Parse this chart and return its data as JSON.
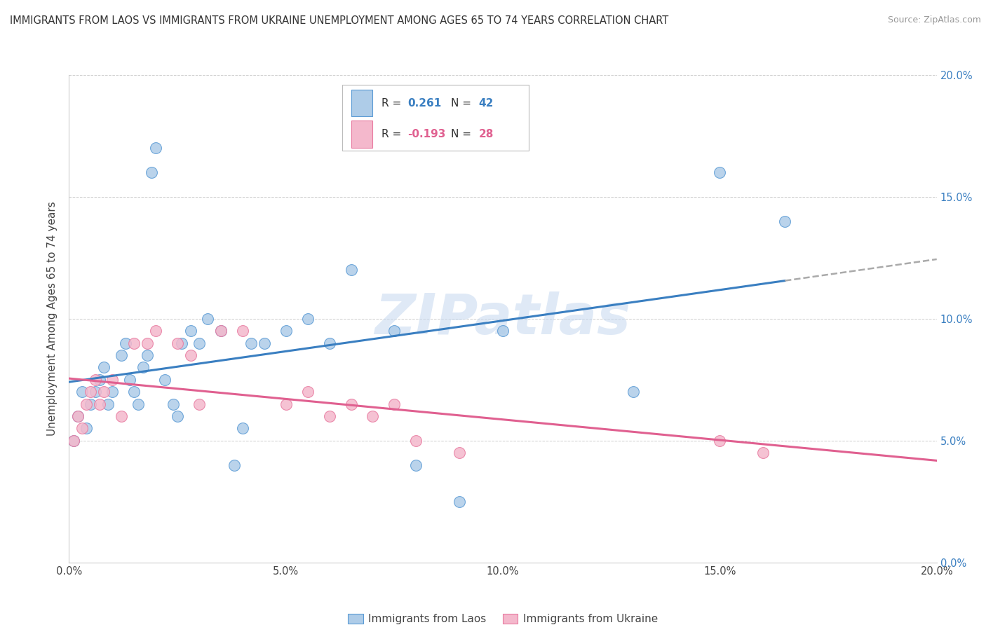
{
  "title": "IMMIGRANTS FROM LAOS VS IMMIGRANTS FROM UKRAINE UNEMPLOYMENT AMONG AGES 65 TO 74 YEARS CORRELATION CHART",
  "source": "Source: ZipAtlas.com",
  "ylabel": "Unemployment Among Ages 65 to 74 years",
  "legend_label1": "Immigrants from Laos",
  "legend_label2": "Immigrants from Ukraine",
  "R1": 0.261,
  "N1": 42,
  "R2": -0.193,
  "N2": 28,
  "color_laos_fill": "#aecce8",
  "color_ukraine_fill": "#f4b8cc",
  "color_laos_edge": "#5b9bd5",
  "color_ukraine_edge": "#e87aa0",
  "color_laos_line": "#3a7fc1",
  "color_ukraine_line": "#e06090",
  "color_dashed": "#aaaaaa",
  "xlim": [
    0.0,
    0.2
  ],
  "ylim": [
    0.0,
    0.2
  ],
  "background_color": "#ffffff",
  "watermark_text": "ZIPatlas",
  "xticks": [
    0.0,
    0.05,
    0.1,
    0.15,
    0.2
  ],
  "yticks": [
    0.0,
    0.05,
    0.1,
    0.15,
    0.2
  ],
  "xtick_labels": [
    "0.0%",
    "5.0%",
    "10.0%",
    "15.0%",
    "20.0%"
  ],
  "ytick_labels": [
    "0.0%",
    "5.0%",
    "10.0%",
    "15.0%",
    "20.0%"
  ],
  "laos_x": [
    0.001,
    0.002,
    0.003,
    0.004,
    0.005,
    0.006,
    0.007,
    0.008,
    0.009,
    0.01,
    0.012,
    0.013,
    0.014,
    0.015,
    0.016,
    0.017,
    0.018,
    0.019,
    0.02,
    0.022,
    0.024,
    0.025,
    0.026,
    0.028,
    0.03,
    0.032,
    0.035,
    0.038,
    0.04,
    0.042,
    0.045,
    0.05,
    0.055,
    0.06,
    0.065,
    0.075,
    0.08,
    0.09,
    0.1,
    0.13,
    0.15,
    0.165
  ],
  "laos_y": [
    0.05,
    0.06,
    0.07,
    0.055,
    0.065,
    0.07,
    0.075,
    0.08,
    0.065,
    0.07,
    0.085,
    0.09,
    0.075,
    0.07,
    0.065,
    0.08,
    0.085,
    0.16,
    0.17,
    0.075,
    0.065,
    0.06,
    0.09,
    0.095,
    0.09,
    0.1,
    0.095,
    0.04,
    0.055,
    0.09,
    0.09,
    0.095,
    0.1,
    0.09,
    0.12,
    0.095,
    0.04,
    0.025,
    0.095,
    0.07,
    0.16,
    0.14
  ],
  "ukraine_x": [
    0.001,
    0.002,
    0.003,
    0.004,
    0.005,
    0.006,
    0.007,
    0.008,
    0.01,
    0.012,
    0.015,
    0.018,
    0.02,
    0.025,
    0.028,
    0.03,
    0.035,
    0.04,
    0.05,
    0.055,
    0.06,
    0.065,
    0.07,
    0.075,
    0.08,
    0.09,
    0.15,
    0.16
  ],
  "ukraine_y": [
    0.05,
    0.06,
    0.055,
    0.065,
    0.07,
    0.075,
    0.065,
    0.07,
    0.075,
    0.06,
    0.09,
    0.09,
    0.095,
    0.09,
    0.085,
    0.065,
    0.095,
    0.095,
    0.065,
    0.07,
    0.06,
    0.065,
    0.06,
    0.065,
    0.05,
    0.045,
    0.05,
    0.045
  ]
}
